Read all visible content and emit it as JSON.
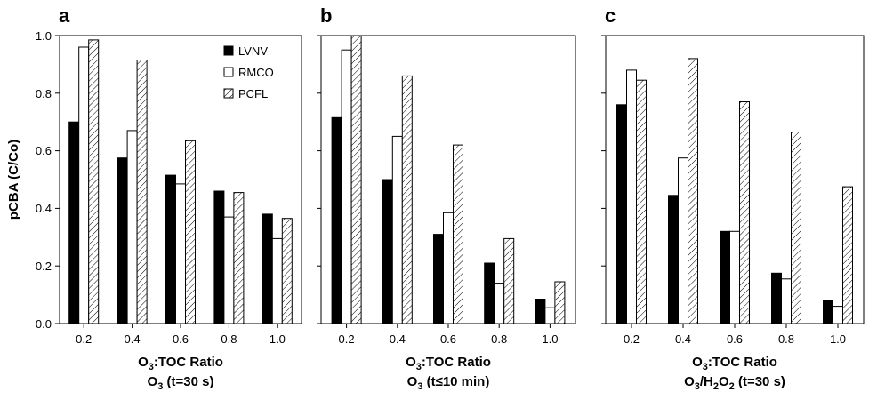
{
  "ylabel": "pCBA (C/Co)",
  "legend": [
    {
      "name": "LVNV",
      "fill": "solid"
    },
    {
      "name": "RMCO",
      "fill": "open"
    },
    {
      "name": "PCFL",
      "fill": "hatch"
    }
  ],
  "colors": {
    "solid": "#000000",
    "open": "#ffffff",
    "stroke": "#000000"
  },
  "chart_data": [
    {
      "type": "bar",
      "panel": "a",
      "categories": [
        "0.2",
        "0.4",
        "0.6",
        "0.8",
        "1.0"
      ],
      "series": [
        {
          "name": "LVNV",
          "values": [
            0.7,
            0.575,
            0.515,
            0.46,
            0.38
          ]
        },
        {
          "name": "RMCO",
          "values": [
            0.96,
            0.67,
            0.485,
            0.37,
            0.295
          ]
        },
        {
          "name": "PCFL",
          "values": [
            0.985,
            0.915,
            0.635,
            0.455,
            0.365
          ]
        }
      ],
      "xlabel_line1_prefix": "O",
      "xlabel_line1_sub": "3",
      "xlabel_line1_suffix": ":TOC Ratio",
      "xlabel_line2_prefix": "O",
      "xlabel_line2_sub": "3",
      "xlabel_line2_suffix": " (t=30 s)",
      "ylim": [
        0,
        1.0
      ],
      "yticks": [
        "0.0",
        "0.2",
        "0.4",
        "0.6",
        "0.8",
        "1.0"
      ]
    },
    {
      "type": "bar",
      "panel": "b",
      "categories": [
        "0.2",
        "0.4",
        "0.6",
        "0.8",
        "1.0"
      ],
      "series": [
        {
          "name": "LVNV",
          "values": [
            0.715,
            0.5,
            0.31,
            0.21,
            0.085
          ]
        },
        {
          "name": "RMCO",
          "values": [
            0.95,
            0.65,
            0.385,
            0.14,
            0.055
          ]
        },
        {
          "name": "PCFL",
          "values": [
            1.0,
            0.86,
            0.62,
            0.295,
            0.145
          ]
        }
      ],
      "xlabel_line1_prefix": "O",
      "xlabel_line1_sub": "3",
      "xlabel_line1_suffix": ":TOC Ratio",
      "xlabel_line2_prefix": "O",
      "xlabel_line2_sub": "3",
      "xlabel_line2_suffix": " (t≤10 min)",
      "ylim": [
        0,
        1.0
      ]
    },
    {
      "type": "bar",
      "panel": "c",
      "categories": [
        "0.2",
        "0.4",
        "0.6",
        "0.8",
        "1.0"
      ],
      "series": [
        {
          "name": "LVNV",
          "values": [
            0.76,
            0.445,
            0.32,
            0.175,
            0.08
          ]
        },
        {
          "name": "RMCO",
          "values": [
            0.88,
            0.575,
            0.32,
            0.155,
            0.06
          ]
        },
        {
          "name": "PCFL",
          "values": [
            0.845,
            0.92,
            0.77,
            0.665,
            0.475
          ]
        }
      ],
      "xlabel_line1_prefix": "O",
      "xlabel_line1_sub": "3",
      "xlabel_line1_suffix": ":TOC Ratio",
      "xlabel_line2_prefix": "O",
      "xlabel_line2_sub": "3",
      "xlabel_line2_mid": "/H",
      "xlabel_line2_sub2": "2",
      "xlabel_line2_mid2": "O",
      "xlabel_line2_sub3": "2",
      "xlabel_line2_suffix": " (t=30 s)",
      "ylim": [
        0,
        1.0
      ]
    }
  ]
}
